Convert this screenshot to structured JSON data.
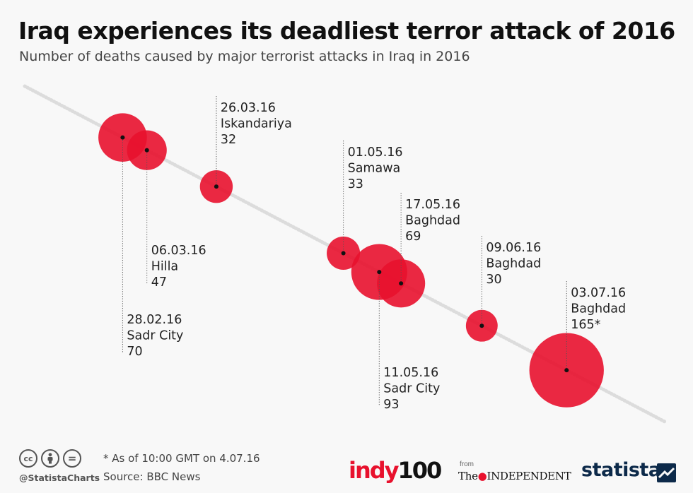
{
  "header": {
    "title": "Iraq experiences its deadliest terror attack of 2016",
    "subtitle": "Number of deaths caused by major terrorist attacks in Iraq in 2016"
  },
  "chart_data": {
    "type": "scatter",
    "title": "Iraq experiences its deadliest terror attack of 2016",
    "subtitle": "Number of deaths caused by major terrorist attacks in Iraq in 2016",
    "encoding": "bubble area proportional to deaths, positioned along a timeline",
    "points": [
      {
        "date": "28.02.16",
        "place": "Sadr City",
        "deaths": 70,
        "deaths_label": "70"
      },
      {
        "date": "06.03.16",
        "place": "Hilla",
        "deaths": 47,
        "deaths_label": "47"
      },
      {
        "date": "26.03.16",
        "place": "Iskandariya",
        "deaths": 32,
        "deaths_label": "32"
      },
      {
        "date": "01.05.16",
        "place": "Samawa",
        "deaths": 33,
        "deaths_label": "33"
      },
      {
        "date": "11.05.16",
        "place": "Sadr City",
        "deaths": 93,
        "deaths_label": "93"
      },
      {
        "date": "17.05.16",
        "place": "Baghdad",
        "deaths": 69,
        "deaths_label": "69"
      },
      {
        "date": "09.06.16",
        "place": "Baghdad",
        "deaths": 30,
        "deaths_label": "30"
      },
      {
        "date": "03.07.16",
        "place": "Baghdad",
        "deaths": 165,
        "deaths_label": "165*"
      }
    ],
    "colors": {
      "bubble": "#e8112d",
      "timeline": "#dcdcdc",
      "leader": "#555555"
    }
  },
  "footer": {
    "license_icons": [
      "cc-icon",
      "attribution-icon",
      "no-derivatives-icon"
    ],
    "cc_text": "cc",
    "equals_text": "=",
    "handle": "@StatistaCharts",
    "note": "* As of 10:00 GMT on 4.07.16",
    "source": "Source: BBC News",
    "indy_part1": "indy",
    "indy_part2": "100",
    "from": "from",
    "independent_part1": "The",
    "independent_part2": "INDEPENDENT",
    "statista": "statista"
  }
}
